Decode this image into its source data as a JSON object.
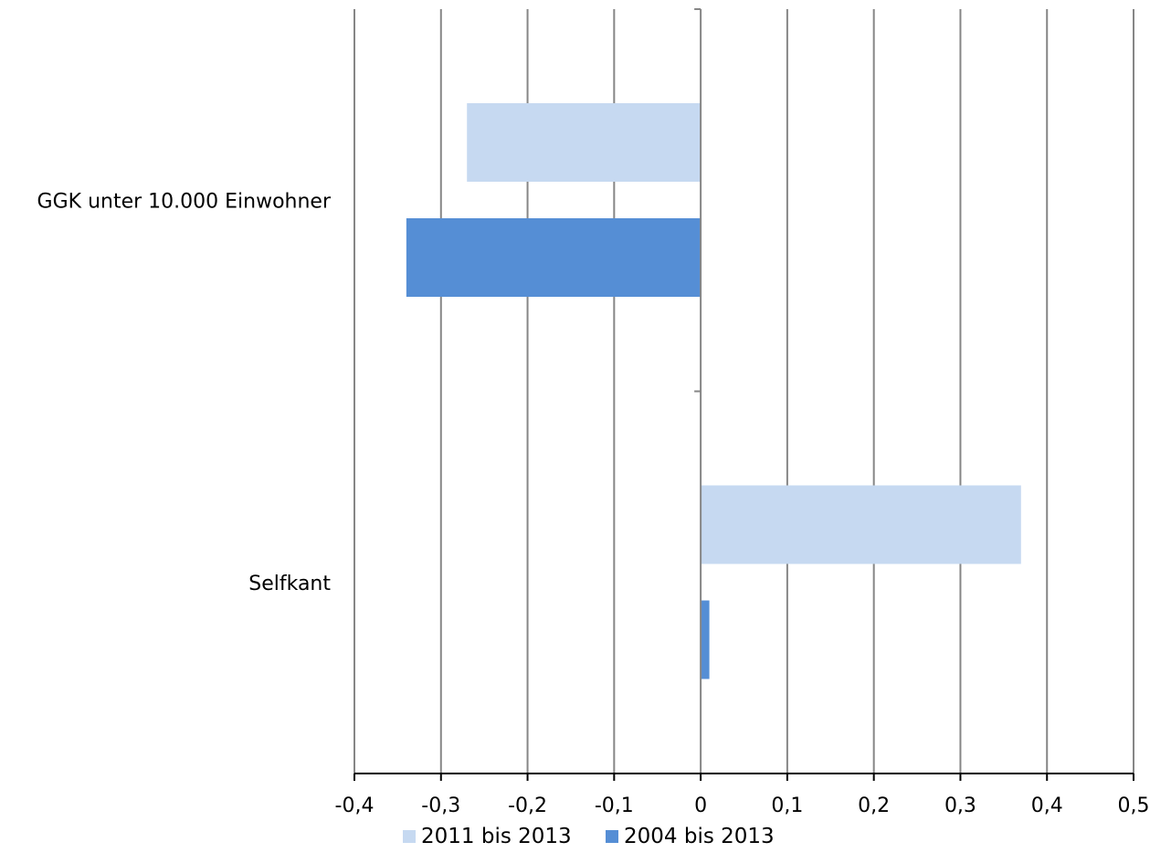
{
  "chart_data": {
    "type": "bar",
    "orientation": "horizontal",
    "categories": [
      "GGK unter 10.000 Einwohner",
      "Selfkant"
    ],
    "series": [
      {
        "name": "2011 bis 2013",
        "color": "#c6d9f1",
        "values": [
          -0.27,
          0.37
        ]
      },
      {
        "name": "2004 bis 2013",
        "color": "#558ed5",
        "values": [
          -0.34,
          0.01
        ]
      }
    ],
    "xlim": [
      -0.4,
      0.5
    ],
    "xticks": [
      -0.4,
      -0.3,
      -0.2,
      -0.1,
      0,
      0.1,
      0.2,
      0.3,
      0.4,
      0.5
    ],
    "xtick_labels": [
      "-0,4",
      "-0,3",
      "-0,2",
      "-0,1",
      "0",
      "0,1",
      "0,2",
      "0,3",
      "0,4",
      "0,5"
    ],
    "grid": "vertical",
    "legend": "bottom"
  }
}
